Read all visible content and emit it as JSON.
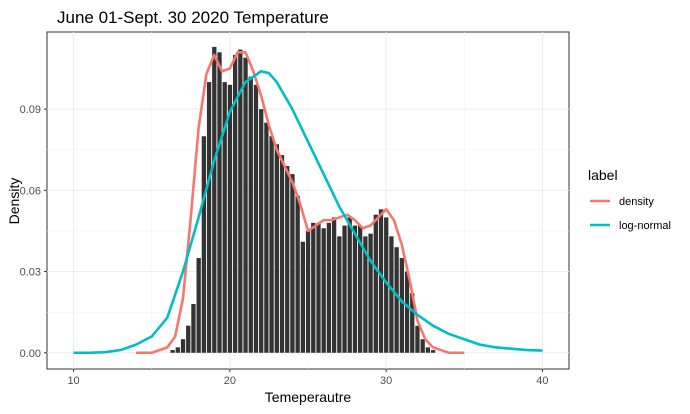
{
  "chart_data": {
    "type": "bar",
    "title": "June 01-Sept. 30 2020 Temperature",
    "xlabel": "Temeperautre",
    "ylabel": "Density",
    "xlim": [
      8.3,
      41.7
    ],
    "ylim": [
      -0.006,
      0.1185
    ],
    "x_ticks": [
      10,
      20,
      30,
      40
    ],
    "x_tick_labels": [
      "10",
      "20",
      "30",
      "40"
    ],
    "y_ticks": [
      0,
      0.03,
      0.06,
      0.09
    ],
    "y_tick_labels": [
      "0.00",
      "0.03",
      "0.06",
      "0.09"
    ],
    "grid": true,
    "legend_position": "right",
    "legend_title": "label",
    "histogram": {
      "bin_width": 0.333,
      "color": "#333333",
      "bin_lefts": [
        16.2,
        16.533,
        16.867,
        17.2,
        17.533,
        17.867,
        18.2,
        18.533,
        18.867,
        19.2,
        19.533,
        19.867,
        20.2,
        20.533,
        20.867,
        21.2,
        21.533,
        21.867,
        22.2,
        22.533,
        22.867,
        23.2,
        23.533,
        23.867,
        24.2,
        24.533,
        24.867,
        25.2,
        25.533,
        25.867,
        26.2,
        26.533,
        26.867,
        27.2,
        27.533,
        27.867,
        28.2,
        28.533,
        28.867,
        29.2,
        29.533,
        29.867,
        30.2,
        30.533,
        30.867,
        31.2,
        31.533,
        31.867,
        32.2,
        32.533,
        32.867
      ],
      "densities": [
        0.001,
        0.002,
        0.005,
        0.01,
        0.018,
        0.035,
        0.08,
        0.1,
        0.113,
        0.111,
        0.1,
        0.099,
        0.11,
        0.112,
        0.109,
        0.102,
        0.099,
        0.09,
        0.085,
        0.08,
        0.077,
        0.073,
        0.069,
        0.066,
        0.058,
        0.041,
        0.045,
        0.048,
        0.048,
        0.046,
        0.048,
        0.05,
        0.043,
        0.047,
        0.05,
        0.047,
        0.047,
        0.043,
        0.044,
        0.051,
        0.053,
        0.05,
        0.043,
        0.039,
        0.035,
        0.03,
        0.022,
        0.01,
        0.005,
        0.002,
        0.001
      ]
    },
    "series": [
      {
        "name": "density",
        "color": "#F8766D",
        "x": [
          14,
          15,
          16,
          16.5,
          17,
          17.5,
          18,
          18.5,
          19,
          19.5,
          20,
          20.5,
          21,
          21.5,
          22,
          22.5,
          23,
          23.5,
          24,
          24.5,
          25,
          25.5,
          26,
          26.5,
          27,
          27.5,
          28,
          28.5,
          29,
          29.5,
          30,
          30.5,
          31,
          31.5,
          32,
          32.5,
          33,
          33.5,
          34,
          35
        ],
        "y": [
          0,
          0,
          0.002,
          0.006,
          0.02,
          0.05,
          0.083,
          0.103,
          0.11,
          0.104,
          0.105,
          0.111,
          0.111,
          0.104,
          0.095,
          0.084,
          0.075,
          0.069,
          0.063,
          0.055,
          0.045,
          0.047,
          0.049,
          0.049,
          0.05,
          0.051,
          0.049,
          0.046,
          0.047,
          0.05,
          0.053,
          0.049,
          0.04,
          0.027,
          0.012,
          0.005,
          0.002,
          0.001,
          0,
          0
        ]
      },
      {
        "name": "log-normal",
        "color": "#00BFC4",
        "x": [
          10,
          11,
          12,
          13,
          14,
          15,
          16,
          17,
          18,
          19,
          20,
          21,
          22,
          22.5,
          23,
          24,
          25,
          26,
          27,
          28,
          29,
          30,
          31,
          32,
          33,
          34,
          35,
          36,
          37,
          38,
          39,
          40
        ],
        "y": [
          0,
          0,
          0.0002,
          0.001,
          0.003,
          0.006,
          0.013,
          0.03,
          0.05,
          0.071,
          0.089,
          0.1,
          0.104,
          0.1033,
          0.1,
          0.09,
          0.078,
          0.066,
          0.054,
          0.044,
          0.034,
          0.026,
          0.019,
          0.014,
          0.01,
          0.007,
          0.005,
          0.003,
          0.002,
          0.0015,
          0.001,
          0.0008
        ]
      }
    ]
  }
}
